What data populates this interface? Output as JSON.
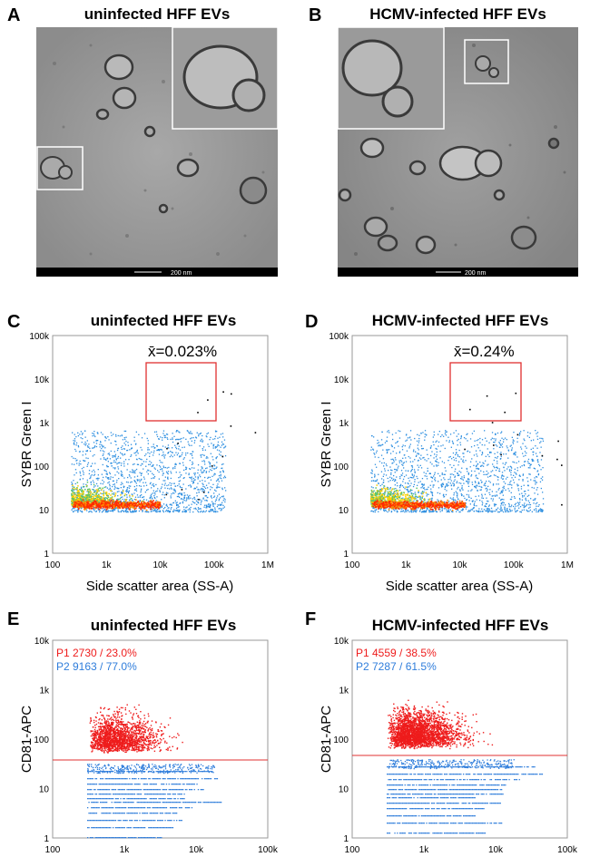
{
  "panels": {
    "A": {
      "letter": "A",
      "title": "uninfected HFF EVs",
      "scalebar": "200 nm"
    },
    "B": {
      "letter": "B",
      "title": "HCMV-infected HFF EVs",
      "scalebar": "200 nm"
    },
    "C": {
      "letter": "C",
      "title": "uninfected HFF EVs",
      "annotation": "x̄=0.023%",
      "ylabel": "SYBR Green I",
      "xlabel": "Side scatter area (SS-A)",
      "yticks": [
        "100k",
        "10k",
        "1k",
        "100",
        "10",
        "1"
      ],
      "xticks": [
        "100",
        "1k",
        "10k",
        "100k",
        "1M"
      ]
    },
    "D": {
      "letter": "D",
      "title": "HCMV-infected HFF EVs",
      "annotation": "x̄=0.24%",
      "ylabel": "SYBR Green I",
      "xlabel": "Side scatter area (SS-A)",
      "yticks": [
        "100k",
        "10k",
        "1k",
        "100",
        "10",
        "1"
      ],
      "xticks": [
        "100",
        "1k",
        "10k",
        "100k",
        "1M"
      ]
    },
    "E": {
      "letter": "E",
      "title": "uninfected HFF EVs",
      "ylabel": "CD81-APC",
      "p1": "P1  2730 / 23.0%",
      "p2": "P2  9163 / 77.0%",
      "yticks": [
        "10k",
        "1k",
        "100",
        "10",
        "1"
      ],
      "xticks": [
        "100",
        "1k",
        "10k",
        "100k"
      ]
    },
    "F": {
      "letter": "F",
      "title": "HCMV-infected HFF EVs",
      "ylabel": "CD81-APC",
      "p1": "P1  4559 / 38.5%",
      "p2": "P2  7287 / 61.5%",
      "yticks": [
        "10k",
        "1k",
        "100",
        "10",
        "1"
      ],
      "xticks": [
        "100",
        "1k",
        "10k",
        "100k"
      ]
    }
  },
  "colors": {
    "gate": "#e03030",
    "p1": "#ee1c1c",
    "p2": "#2f7ddb",
    "density_high": "#ff2a00",
    "density_mid": "#ffd000",
    "density_low": "#2e8fe0"
  }
}
